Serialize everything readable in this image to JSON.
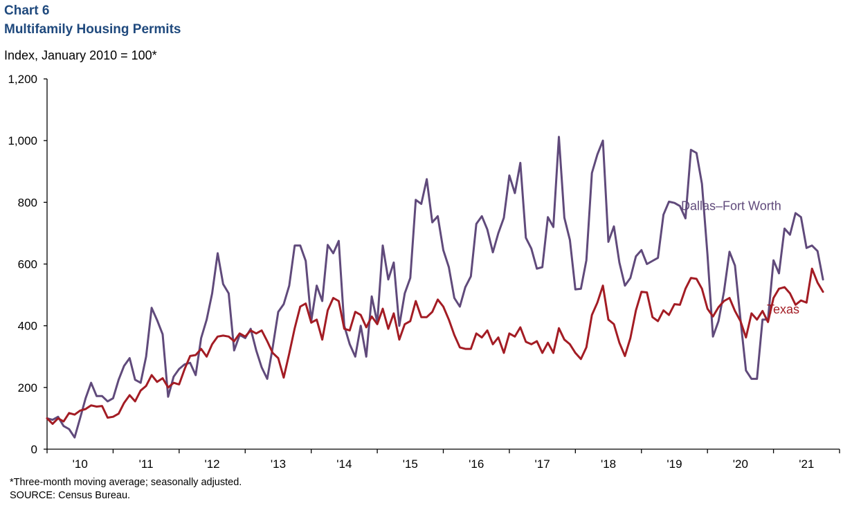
{
  "header": {
    "chart_number": "Chart 6",
    "title": "Multifamily Housing Permits",
    "subtitle": "Index, January 2010 = 100*"
  },
  "footer": {
    "note": "*Three-month moving average; seasonally adjusted.",
    "source": "SOURCE:  Census Bureau."
  },
  "chart_data": {
    "type": "line",
    "title": "Multifamily Housing Permits",
    "ylabel": "Index, January 2010 = 100*",
    "xlabel": "",
    "ylim": [
      0,
      1200
    ],
    "y_ticks": [
      0,
      200,
      400,
      600,
      800,
      1000,
      1200
    ],
    "y_tick_labels": [
      "0",
      "200",
      "400",
      "600",
      "800",
      "1,000",
      "1,200"
    ],
    "x_tick_labels": [
      "'10",
      "'11",
      "'12",
      "'13",
      "'14",
      "'15",
      "'16",
      "'17",
      "'18",
      "'19",
      "'20",
      "'21"
    ],
    "x_start": "2010-01",
    "x_end": "2021-06",
    "grid": false,
    "series": [
      {
        "name": "Dallas–Fort Worth",
        "color": "#604a7b",
        "values": [
          100,
          95,
          105,
          75,
          65,
          38,
          100,
          165,
          215,
          172,
          172,
          155,
          165,
          225,
          270,
          295,
          225,
          215,
          300,
          458,
          418,
          372,
          170,
          235,
          260,
          275,
          280,
          240,
          360,
          420,
          505,
          635,
          535,
          505,
          320,
          370,
          360,
          390,
          320,
          265,
          228,
          330,
          445,
          470,
          530,
          660,
          660,
          610,
          415,
          530,
          480,
          662,
          635,
          675,
          400,
          340,
          300,
          400,
          300,
          495,
          410,
          660,
          550,
          605,
          400,
          505,
          555,
          808,
          795,
          875,
          735,
          755,
          645,
          590,
          490,
          462,
          525,
          560,
          730,
          755,
          712,
          638,
          700,
          750,
          887,
          830,
          928,
          685,
          650,
          585,
          590,
          752,
          720,
          1012,
          750,
          678,
          518,
          520,
          612,
          895,
          955,
          1000,
          672,
          722,
          605,
          530,
          555,
          625,
          645,
          600,
          610,
          620,
          760,
          802,
          798,
          788,
          748,
          970,
          960,
          860,
          630,
          365,
          415,
          510,
          640,
          595,
          420,
          255,
          228,
          228,
          420,
          420,
          612,
          570,
          715,
          695,
          765,
          752,
          652,
          660,
          642,
          550
        ],
        "label_at": [
          2019.6,
          775
        ]
      },
      {
        "name": "Texas",
        "color": "#a31c24",
        "values": [
          100,
          82,
          100,
          90,
          117,
          112,
          125,
          130,
          142,
          138,
          140,
          102,
          105,
          115,
          150,
          175,
          155,
          190,
          205,
          240,
          218,
          230,
          200,
          215,
          210,
          260,
          302,
          305,
          325,
          300,
          340,
          365,
          368,
          365,
          350,
          375,
          365,
          385,
          375,
          385,
          350,
          312,
          295,
          232,
          310,
          392,
          462,
          472,
          410,
          420,
          355,
          450,
          490,
          480,
          390,
          385,
          445,
          435,
          395,
          430,
          405,
          455,
          390,
          440,
          355,
          405,
          415,
          480,
          428,
          428,
          445,
          485,
          462,
          420,
          370,
          330,
          325,
          325,
          375,
          362,
          385,
          340,
          362,
          312,
          375,
          365,
          395,
          348,
          340,
          350,
          312,
          345,
          312,
          392,
          355,
          340,
          312,
          292,
          330,
          435,
          475,
          530,
          420,
          405,
          345,
          302,
          360,
          450,
          510,
          508,
          428,
          415,
          450,
          435,
          470,
          468,
          520,
          555,
          552,
          520,
          455,
          430,
          460,
          480,
          490,
          448,
          415,
          362,
          440,
          420,
          448,
          412,
          490,
          520,
          525,
          505,
          468,
          482,
          475,
          585,
          540,
          510
        ],
        "label_at": [
          2020.9,
          440
        ]
      }
    ]
  }
}
